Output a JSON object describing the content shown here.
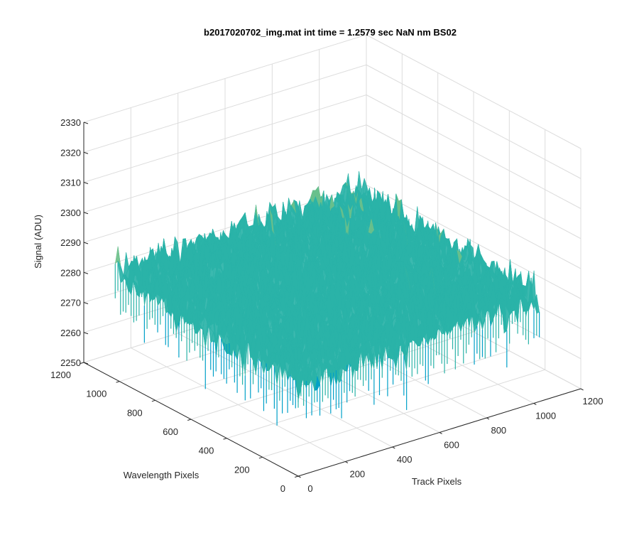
{
  "chart_data": {
    "type": "surface",
    "title": "b2017020702_img.mat int time = 1.2579 sec  NaN nm BS02",
    "xlabel": "Track Pixels",
    "ylabel": "Wavelength Pixels",
    "zlabel": "Signal (ADU)",
    "xlim": [
      0,
      1200
    ],
    "ylim": [
      0,
      1200
    ],
    "zlim": [
      2250,
      2330
    ],
    "xticks": [
      0,
      200,
      400,
      600,
      800,
      1000,
      1200
    ],
    "yticks": [
      0,
      200,
      400,
      600,
      800,
      1000,
      1200
    ],
    "zticks": [
      2250,
      2260,
      2270,
      2280,
      2290,
      2300,
      2310,
      2320,
      2330
    ],
    "surface": {
      "x_range": [
        0,
        1024
      ],
      "y_range": [
        0,
        1024
      ],
      "mean_signal": 2282,
      "noise_min": 2255,
      "noise_max": 2325,
      "colormap": [
        "#0072bd",
        "#00a0c8",
        "#2ab3a8",
        "#6cc08a",
        "#b3c66a",
        "#e8c75a"
      ]
    },
    "grid": true
  }
}
